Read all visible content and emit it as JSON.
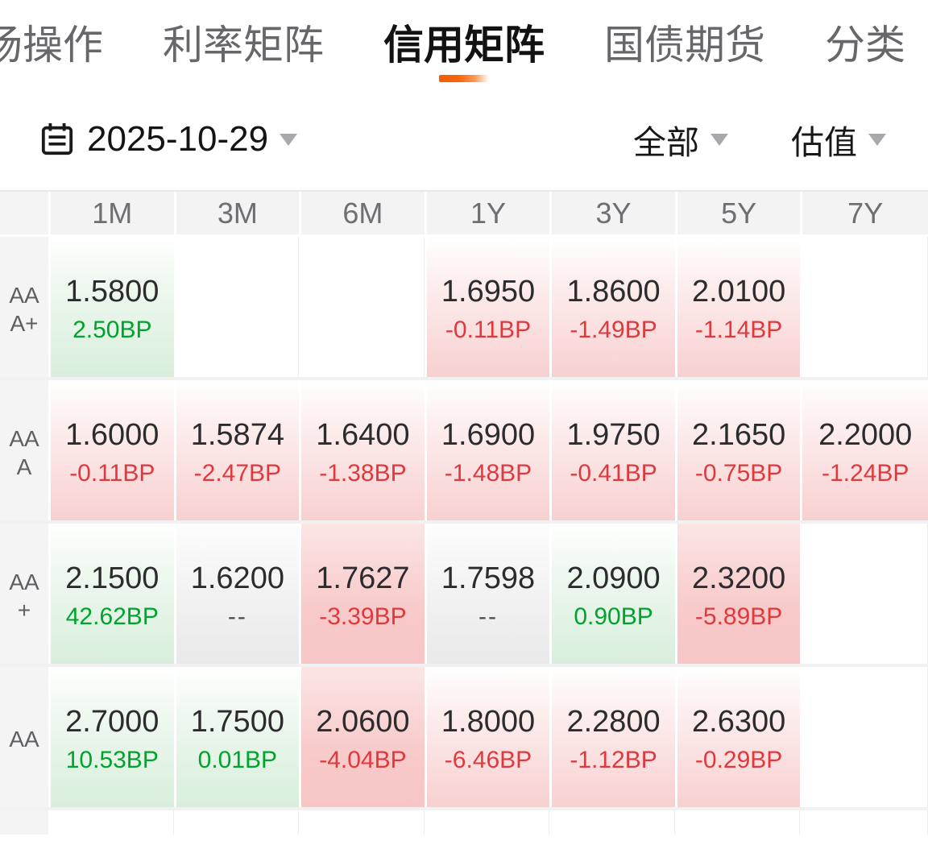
{
  "tabs": [
    {
      "label": "场操作",
      "active": false
    },
    {
      "label": "利率矩阵",
      "active": false
    },
    {
      "label": "信用矩阵",
      "active": true
    },
    {
      "label": "国债期货",
      "active": false
    },
    {
      "label": "分类",
      "active": false
    }
  ],
  "filters": {
    "date": "2025-10-29",
    "scope": "全部",
    "mode": "估值"
  },
  "icons": {
    "date_picker": "calendar-icon",
    "dropdown": "caret-down-icon"
  },
  "matrix": {
    "columns": [
      "1M",
      "3M",
      "6M",
      "1Y",
      "3Y",
      "5Y",
      "7Y"
    ],
    "rows": [
      {
        "label": "AAA+",
        "cells": [
          {
            "value": "1.5800",
            "change": "2.50BP",
            "tone": "green"
          },
          null,
          null,
          {
            "value": "1.6950",
            "change": "-0.11BP",
            "tone": "red"
          },
          {
            "value": "1.8600",
            "change": "-1.49BP",
            "tone": "red"
          },
          {
            "value": "2.0100",
            "change": "-1.14BP",
            "tone": "red"
          },
          null
        ]
      },
      {
        "label": "AAA",
        "cells": [
          {
            "value": "1.6000",
            "change": "-0.11BP",
            "tone": "red"
          },
          {
            "value": "1.5874",
            "change": "-2.47BP",
            "tone": "red"
          },
          {
            "value": "1.6400",
            "change": "-1.38BP",
            "tone": "red"
          },
          {
            "value": "1.6900",
            "change": "-1.48BP",
            "tone": "red"
          },
          {
            "value": "1.9750",
            "change": "-0.41BP",
            "tone": "red"
          },
          {
            "value": "2.1650",
            "change": "-0.75BP",
            "tone": "red"
          },
          {
            "value": "2.2000",
            "change": "-1.24BP",
            "tone": "red"
          }
        ]
      },
      {
        "label": "AA+",
        "cells": [
          {
            "value": "2.1500",
            "change": "42.62BP",
            "tone": "green"
          },
          {
            "value": "1.6200",
            "change": "--",
            "tone": "gray"
          },
          {
            "value": "1.7627",
            "change": "-3.39BP",
            "tone": "redstrong"
          },
          {
            "value": "1.7598",
            "change": "--",
            "tone": "gray"
          },
          {
            "value": "2.0900",
            "change": "0.90BP",
            "tone": "green"
          },
          {
            "value": "2.3200",
            "change": "-5.89BP",
            "tone": "redstrong"
          },
          null
        ]
      },
      {
        "label": "AA",
        "cells": [
          {
            "value": "2.7000",
            "change": "10.53BP",
            "tone": "green"
          },
          {
            "value": "1.7500",
            "change": "0.01BP",
            "tone": "green"
          },
          {
            "value": "2.0600",
            "change": "-4.04BP",
            "tone": "redstrong"
          },
          {
            "value": "1.8000",
            "change": "-6.46BP",
            "tone": "red"
          },
          {
            "value": "2.2800",
            "change": "-1.12BP",
            "tone": "red"
          },
          {
            "value": "2.6300",
            "change": "-0.29BP",
            "tone": "red"
          },
          null
        ]
      }
    ]
  },
  "colors": {
    "accent_orange": "#f85b00",
    "up_green": "#00a32e",
    "down_red": "#df393e",
    "green_cell": "#d8eedb",
    "red_cell": "#f8d0d0",
    "red_cell_strong": "#f7c5c6",
    "gray_cell": "#e9e9ea",
    "header_bg": "#f3f3f4"
  }
}
